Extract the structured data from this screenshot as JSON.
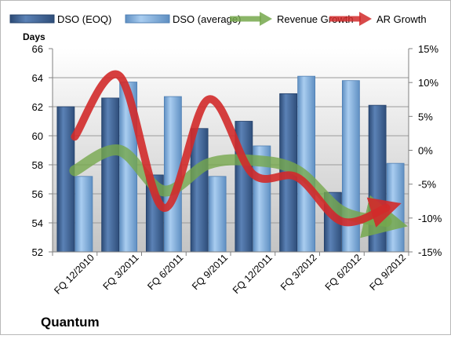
{
  "chart_data": {
    "type": "bar",
    "title": "Quantum",
    "ylabel": "Days",
    "categories": [
      "FQ 12/2010",
      "FQ 3/2011",
      "FQ 6/2011",
      "FQ 9/2011",
      "FQ 12/2011",
      "FQ 3/2012",
      "FQ 6/2012",
      "FQ 9/2012"
    ],
    "ylim": [
      52,
      66
    ],
    "yticks": [
      "52",
      "54",
      "56",
      "58",
      "60",
      "62",
      "64",
      "66"
    ],
    "y2lim": [
      -15,
      15
    ],
    "y2ticks": [
      "-15%",
      "-10%",
      "-5%",
      "0%",
      "5%",
      "10%",
      "15%"
    ],
    "series": [
      {
        "name": "DSO (EOQ)",
        "kind": "bar",
        "axis": "left",
        "color": "#4a6f9e",
        "values": [
          62.0,
          62.6,
          57.3,
          60.5,
          61.0,
          62.9,
          56.1,
          62.1
        ]
      },
      {
        "name": "DSO (average)",
        "kind": "bar",
        "axis": "left",
        "color": "#8fb6dd",
        "values": [
          57.2,
          63.7,
          62.7,
          57.2,
          59.3,
          64.1,
          63.8,
          58.1
        ]
      },
      {
        "name": "Revenue Growth",
        "kind": "line",
        "axis": "right",
        "color": "#76a84c",
        "values": [
          -3.0,
          0.0,
          -6.0,
          -2.0,
          -1.5,
          -3.0,
          -9.0,
          -10.5
        ]
      },
      {
        "name": "AR Growth",
        "kind": "line",
        "axis": "right",
        "color": "#d12a2a",
        "values": [
          2.0,
          11.0,
          -8.5,
          7.5,
          -3.5,
          -4.0,
          -10.5,
          -8.5
        ]
      }
    ],
    "legend": "top",
    "grid": true,
    "plot_background": "gradient-gray",
    "colors": {
      "axis": "#808080",
      "grid": "#9a9a9a",
      "border": "#a0a0a0"
    }
  }
}
